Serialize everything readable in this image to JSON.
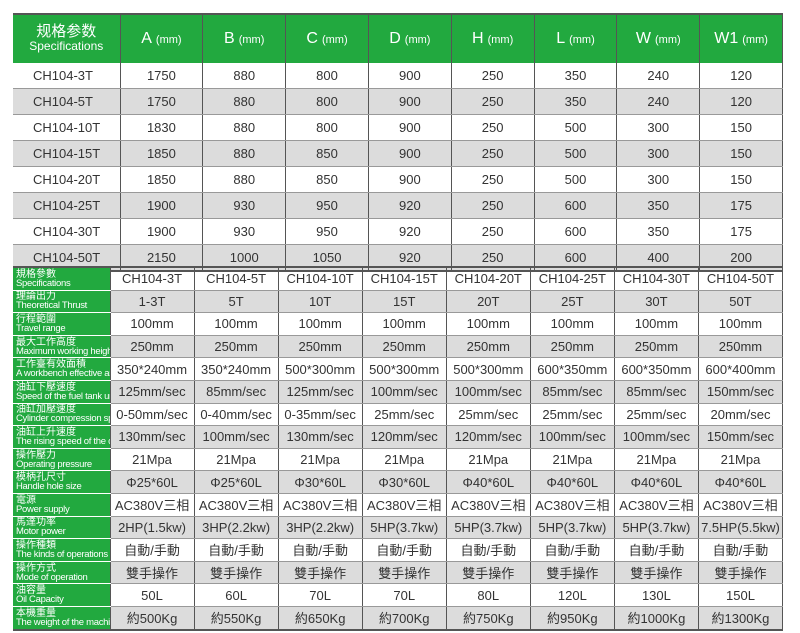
{
  "dimensions_table": {
    "header": {
      "spec_cn": "规格参数",
      "spec_en": "Specifications",
      "unit": "(mm)",
      "columns": [
        "A",
        "B",
        "C",
        "D",
        "H",
        "L",
        "W",
        "W1"
      ]
    },
    "rows": [
      {
        "model": "CH104-3T",
        "values": [
          "1750",
          "880",
          "800",
          "900",
          "250",
          "350",
          "240",
          "120"
        ]
      },
      {
        "model": "CH104-5T",
        "values": [
          "1750",
          "880",
          "800",
          "900",
          "250",
          "350",
          "240",
          "120"
        ]
      },
      {
        "model": "CH104-10T",
        "values": [
          "1830",
          "880",
          "800",
          "900",
          "250",
          "500",
          "300",
          "150"
        ]
      },
      {
        "model": "CH104-15T",
        "values": [
          "1850",
          "880",
          "850",
          "900",
          "250",
          "500",
          "300",
          "150"
        ]
      },
      {
        "model": "CH104-20T",
        "values": [
          "1850",
          "880",
          "850",
          "900",
          "250",
          "500",
          "300",
          "150"
        ]
      },
      {
        "model": "CH104-25T",
        "values": [
          "1900",
          "930",
          "950",
          "920",
          "250",
          "600",
          "350",
          "175"
        ]
      },
      {
        "model": "CH104-30T",
        "values": [
          "1900",
          "930",
          "950",
          "920",
          "250",
          "600",
          "350",
          "175"
        ]
      },
      {
        "model": "CH104-50T",
        "values": [
          "2150",
          "1000",
          "1050",
          "920",
          "250",
          "600",
          "400",
          "200"
        ]
      }
    ]
  },
  "spec_table": {
    "rows": [
      {
        "cn": "規格參數",
        "en": "Specifications",
        "values": [
          "CH104-3T",
          "CH104-5T",
          "CH104-10T",
          "CH104-15T",
          "CH104-20T",
          "CH104-25T",
          "CH104-30T",
          "CH104-50T"
        ]
      },
      {
        "cn": "理論出力",
        "en": "Theoretical Thrust",
        "values": [
          "1-3T",
          "5T",
          "10T",
          "15T",
          "20T",
          "25T",
          "30T",
          "50T"
        ]
      },
      {
        "cn": "行程範圍",
        "en": "Travel range",
        "values": [
          "100mm",
          "100mm",
          "100mm",
          "100mm",
          "100mm",
          "100mm",
          "100mm",
          "100mm"
        ]
      },
      {
        "cn": "最大工作高度",
        "en": "Maximum working height",
        "values": [
          "250mm",
          "250mm",
          "250mm",
          "250mm",
          "250mm",
          "250mm",
          "250mm",
          "250mm"
        ]
      },
      {
        "cn": "工作臺有效面積",
        "en": "A workbench effective area",
        "values": [
          "350*240mm",
          "350*240mm",
          "500*300mm",
          "500*300mm",
          "500*300mm",
          "600*350mm",
          "600*350mm",
          "600*400mm"
        ]
      },
      {
        "cn": "油缸下壓速度",
        "en": "Speed of the fuel tank under pressure",
        "values": [
          "125mm/sec",
          "85mm/sec",
          "125mm/sec",
          "100mm/sec",
          "100mm/sec",
          "85mm/sec",
          "85mm/sec",
          "150mm/sec"
        ]
      },
      {
        "cn": "油缸加壓速度",
        "en": "Cylinder compression speed",
        "values": [
          "0-50mm/sec",
          "0-40mm/sec",
          "0-35mm/sec",
          "25mm/sec",
          "25mm/sec",
          "25mm/sec",
          "25mm/sec",
          "20mm/sec"
        ]
      },
      {
        "cn": "油缸上升速度",
        "en": "The rising speed of the cylinder",
        "values": [
          "130mm/sec",
          "100mm/sec",
          "130mm/sec",
          "120mm/sec",
          "120mm/sec",
          "100mm/sec",
          "100mm/sec",
          "150mm/sec"
        ]
      },
      {
        "cn": "操作壓力",
        "en": "Operating pressure",
        "values": [
          "21Mpa",
          "21Mpa",
          "21Mpa",
          "21Mpa",
          "21Mpa",
          "21Mpa",
          "21Mpa",
          "21Mpa"
        ]
      },
      {
        "cn": "模柄孔尺寸",
        "en": "Handle hole size",
        "values": [
          "Φ25*60L",
          "Φ25*60L",
          "Φ30*60L",
          "Φ30*60L",
          "Φ40*60L",
          "Φ40*60L",
          "Φ40*60L",
          "Φ40*60L"
        ]
      },
      {
        "cn": "電源",
        "en": "Power supply",
        "values": [
          "AC380V三相",
          "AC380V三相",
          "AC380V三相",
          "AC380V三相",
          "AC380V三相",
          "AC380V三相",
          "AC380V三相",
          "AC380V三相"
        ]
      },
      {
        "cn": "馬達功率",
        "en": "Motor power",
        "values": [
          "2HP(1.5kw)",
          "3HP(2.2kw)",
          "3HP(2.2kw)",
          "5HP(3.7kw)",
          "5HP(3.7kw)",
          "5HP(3.7kw)",
          "5HP(3.7kw)",
          "7.5HP(5.5kw)"
        ]
      },
      {
        "cn": "操作種類",
        "en": "The kinds of operations",
        "values": [
          "自動/手動",
          "自動/手動",
          "自動/手動",
          "自動/手動",
          "自動/手動",
          "自動/手動",
          "自動/手動",
          "自動/手動"
        ]
      },
      {
        "cn": "操作方式",
        "en": "Mode of operation",
        "values": [
          "雙手操作",
          "雙手操作",
          "雙手操作",
          "雙手操作",
          "雙手操作",
          "雙手操作",
          "雙手操作",
          "雙手操作"
        ]
      },
      {
        "cn": "油容量",
        "en": "Oil Capacity",
        "values": [
          "50L",
          "60L",
          "70L",
          "70L",
          "80L",
          "120L",
          "130L",
          "150L"
        ]
      },
      {
        "cn": "本機重量",
        "en": "The weight of the machine",
        "values": [
          "約500Kg",
          "約550Kg",
          "約650Kg",
          "約700Kg",
          "約750Kg",
          "約950Kg",
          "約1000Kg",
          "約1300Kg"
        ]
      }
    ]
  },
  "colors": {
    "header_green": "#22a93f",
    "row_alt": "#dcdcdc"
  }
}
